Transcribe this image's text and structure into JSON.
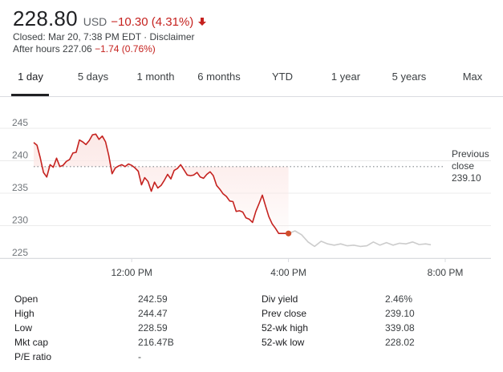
{
  "quote": {
    "price": "228.80",
    "currency": "USD",
    "change": "−10.30 (4.31%)",
    "closed_text": "Closed: Mar 20, 7:38 PM EDT · ",
    "disclaimer": "Disclaimer",
    "after_hours_label": "After hours 227.06 ",
    "after_hours_change": "−1.74 (0.76%)"
  },
  "colors": {
    "negative": "#c5221f",
    "area_fill": "#fce8e6",
    "after_hours_line": "#cccccc",
    "marker": "#d04e2b"
  },
  "tabs": [
    {
      "label": "1 day",
      "active": true
    },
    {
      "label": "5 days",
      "active": false
    },
    {
      "label": "1 month",
      "active": false
    },
    {
      "label": "6 months",
      "active": false
    },
    {
      "label": "YTD",
      "active": false
    },
    {
      "label": "1 year",
      "active": false
    },
    {
      "label": "5 years",
      "active": false
    },
    {
      "label": "Max",
      "active": false
    }
  ],
  "chart_data": {
    "type": "line",
    "ylim": [
      225,
      245
    ],
    "y_ticks": [
      "245",
      "240",
      "235",
      "230",
      "225"
    ],
    "x_ticks": [
      "12:00 PM",
      "4:00 PM",
      "8:00 PM"
    ],
    "x_range": [
      "9:30 AM",
      "8:00 PM"
    ],
    "grid": true,
    "reference_label": "Previous close",
    "reference_value": "239.10",
    "series": [
      {
        "session": "regular",
        "x": [
          "9:30",
          "9:35",
          "9:40",
          "9:45",
          "9:50",
          "9:55",
          "10:00",
          "10:05",
          "10:10",
          "10:15",
          "10:20",
          "10:25",
          "10:30",
          "10:35",
          "10:40",
          "10:45",
          "10:50",
          "10:55",
          "11:00",
          "11:05",
          "11:10",
          "11:15",
          "11:20",
          "11:25",
          "11:30",
          "11:35",
          "11:40",
          "11:45",
          "11:50",
          "11:55",
          "12:00",
          "12:05",
          "12:10",
          "12:15",
          "12:20",
          "12:25",
          "12:30",
          "12:35",
          "12:40",
          "12:45",
          "12:50",
          "12:55",
          "13:00",
          "13:05",
          "13:10",
          "13:15",
          "13:20",
          "13:25",
          "13:30",
          "13:35",
          "13:40",
          "13:45",
          "13:50",
          "13:55",
          "14:00",
          "14:05",
          "14:10",
          "14:15",
          "14:20",
          "14:25",
          "14:30",
          "14:35",
          "14:40",
          "14:45",
          "14:50",
          "14:55",
          "15:00",
          "15:05",
          "15:10",
          "15:15",
          "15:20",
          "15:25",
          "15:30",
          "15:35",
          "15:40",
          "15:45",
          "15:50",
          "15:55",
          "16:00"
        ],
        "values": [
          242.8,
          242.4,
          240.5,
          238.2,
          237.5,
          239.4,
          239.0,
          240.4,
          239.1,
          239.3,
          239.9,
          240.2,
          241.2,
          241.3,
          243.2,
          242.9,
          242.5,
          243.1,
          244.0,
          244.1,
          243.3,
          243.8,
          242.9,
          240.8,
          238.0,
          238.9,
          239.2,
          239.4,
          239.1,
          239.5,
          239.3,
          238.9,
          238.4,
          236.3,
          237.4,
          236.8,
          235.3,
          236.7,
          235.8,
          236.2,
          237.0,
          237.9,
          237.2,
          238.5,
          238.8,
          239.4,
          238.6,
          237.8,
          237.7,
          237.8,
          238.2,
          237.5,
          237.3,
          237.9,
          238.3,
          237.7,
          236.2,
          235.6,
          234.9,
          234.5,
          233.8,
          233.7,
          232.2,
          232.3,
          232.1,
          231.2,
          231.0,
          230.5,
          232.2,
          233.4,
          234.7,
          233.0,
          231.4,
          230.3,
          229.6,
          228.8,
          228.8,
          228.8,
          228.8
        ]
      },
      {
        "session": "after_hours",
        "x": [
          "16:00",
          "16:10",
          "16:20",
          "16:30",
          "16:40",
          "16:50",
          "17:00",
          "17:10",
          "17:20",
          "17:30",
          "17:40",
          "17:50",
          "18:00",
          "18:10",
          "18:20",
          "18:30",
          "18:40",
          "18:50",
          "19:00",
          "19:10",
          "19:20",
          "19:30",
          "19:38"
        ],
        "values": [
          228.8,
          229.2,
          228.6,
          227.5,
          226.8,
          227.6,
          227.2,
          227.0,
          227.2,
          226.9,
          227.0,
          226.8,
          226.9,
          227.5,
          227.0,
          227.4,
          227.0,
          227.3,
          227.2,
          227.5,
          227.1,
          227.2,
          227.06
        ]
      }
    ]
  },
  "stats": {
    "left": [
      {
        "label": "Open",
        "value": "242.59"
      },
      {
        "label": "High",
        "value": "244.47"
      },
      {
        "label": "Low",
        "value": "228.59"
      },
      {
        "label": "Mkt cap",
        "value": "216.47B"
      },
      {
        "label": "P/E ratio",
        "value": "-"
      }
    ],
    "right": [
      {
        "label": "Div yield",
        "value": "2.46%"
      },
      {
        "label": "Prev close",
        "value": "239.10"
      },
      {
        "label": "52-wk high",
        "value": "339.08"
      },
      {
        "label": "52-wk low",
        "value": "228.02"
      }
    ]
  }
}
